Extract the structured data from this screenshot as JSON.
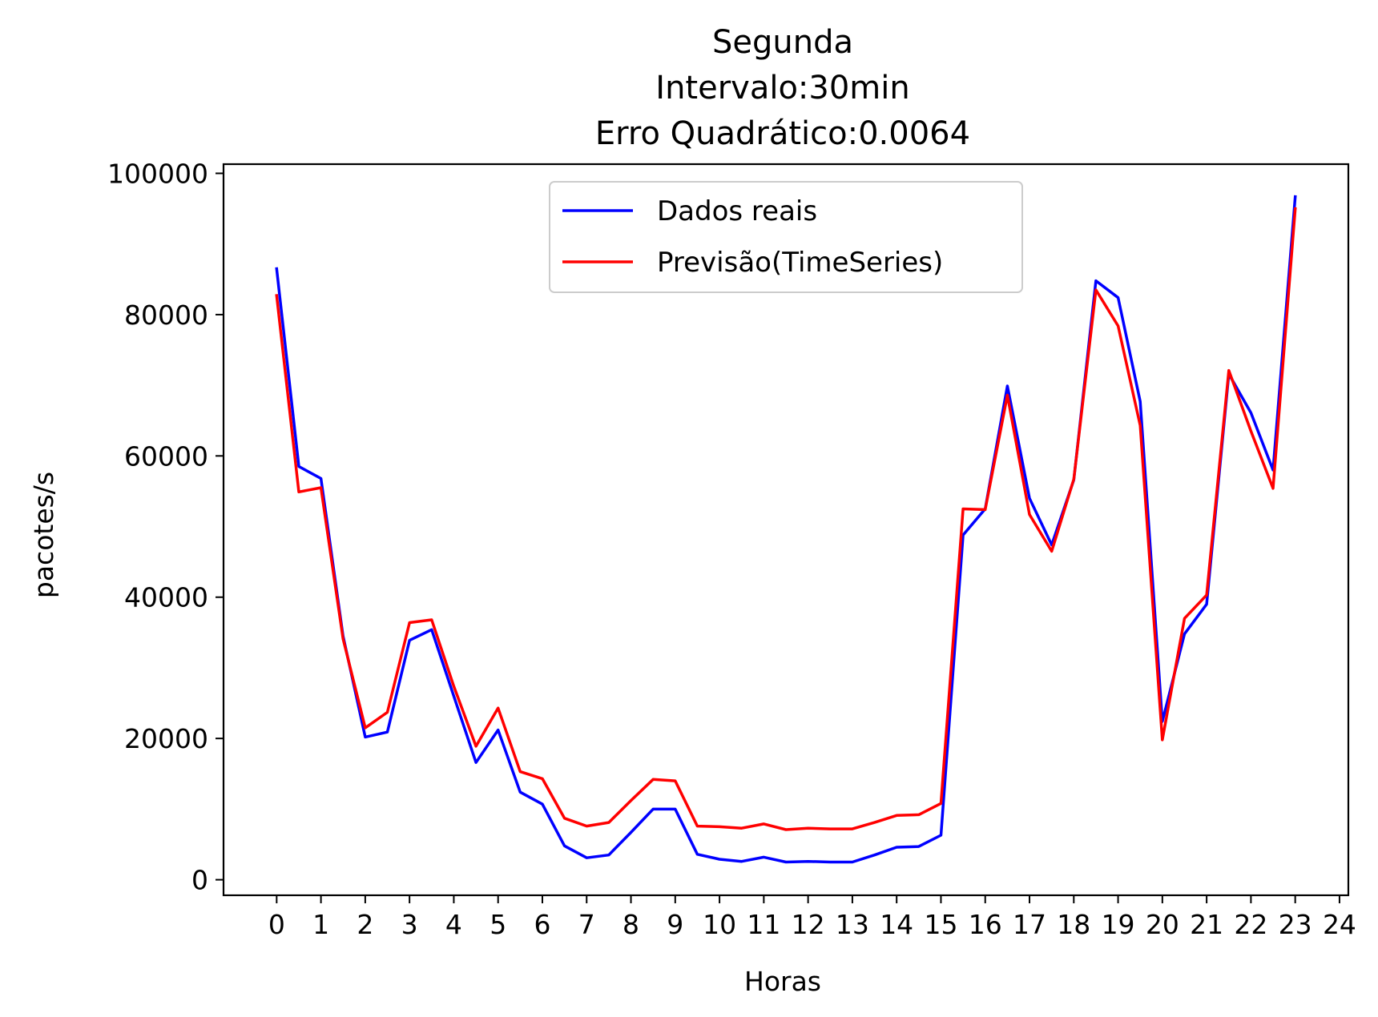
{
  "chart_data": {
    "type": "line",
    "title_lines": [
      "Segunda",
      "Intervalo:30min",
      "Erro Quadrático:0.0064"
    ],
    "xlabel": "Horas",
    "ylabel": "pacotes/s",
    "xlim": [
      -1.2,
      24.2
    ],
    "ylim": [
      -2200,
      101300
    ],
    "xticks": [
      0,
      1,
      2,
      3,
      4,
      5,
      6,
      7,
      8,
      9,
      10,
      11,
      12,
      13,
      14,
      15,
      16,
      17,
      18,
      19,
      20,
      21,
      22,
      23,
      24
    ],
    "xtick_labels": [
      "0",
      "1",
      "2",
      "3",
      "4",
      "5",
      "6",
      "7",
      "8",
      "9",
      "10",
      "11",
      "12",
      "13",
      "14",
      "15",
      "16",
      "17",
      "18",
      "19",
      "20",
      "21",
      "22",
      "23",
      "24"
    ],
    "yticks": [
      0,
      20000,
      40000,
      60000,
      80000,
      100000
    ],
    "ytick_labels": [
      "0",
      "20000",
      "40000",
      "60000",
      "80000",
      "100000"
    ],
    "grid": false,
    "legend_position": "top-center",
    "x": [
      0,
      0.5,
      1,
      1.5,
      2,
      2.5,
      3,
      3.5,
      4,
      4.5,
      5,
      5.5,
      6,
      6.5,
      7,
      7.5,
      8,
      8.5,
      9,
      9.5,
      10,
      10.5,
      11,
      11.5,
      12,
      12.5,
      13,
      13.5,
      14,
      14.5,
      15,
      15.5,
      16,
      16.5,
      17,
      17.5,
      18,
      18.5,
      19,
      19.5,
      20,
      20.5,
      21,
      21.5,
      22,
      22.5,
      23
    ],
    "series": [
      {
        "name": "Dados reais",
        "color": "#0000ff",
        "values": [
          86500,
          58500,
          56800,
          34500,
          20200,
          20900,
          33900,
          35400,
          26000,
          16600,
          21200,
          12400,
          10700,
          4800,
          3100,
          3500,
          6700,
          10000,
          10000,
          3600,
          2900,
          2600,
          3200,
          2500,
          2600,
          2500,
          2500,
          3500,
          4600,
          4700,
          6300,
          48800,
          52500,
          69900,
          54000,
          47400,
          56600,
          84800,
          82400,
          67700,
          22400,
          34800,
          39000,
          71600,
          66100,
          58000,
          96700
        ]
      },
      {
        "name": "Previsão(TimeSeries)",
        "color": "#ff0000",
        "values": [
          82700,
          54900,
          55500,
          34100,
          21500,
          23700,
          36400,
          36800,
          27400,
          18900,
          24300,
          15300,
          14300,
          8700,
          7600,
          8100,
          11200,
          14200,
          14000,
          7600,
          7500,
          7300,
          7900,
          7100,
          7300,
          7200,
          7200,
          8100,
          9100,
          9200,
          10800,
          52500,
          52400,
          68600,
          51700,
          46500,
          56700,
          83500,
          78400,
          64300,
          19800,
          37000,
          40300,
          72100,
          63500,
          55400,
          95000
        ]
      }
    ]
  }
}
